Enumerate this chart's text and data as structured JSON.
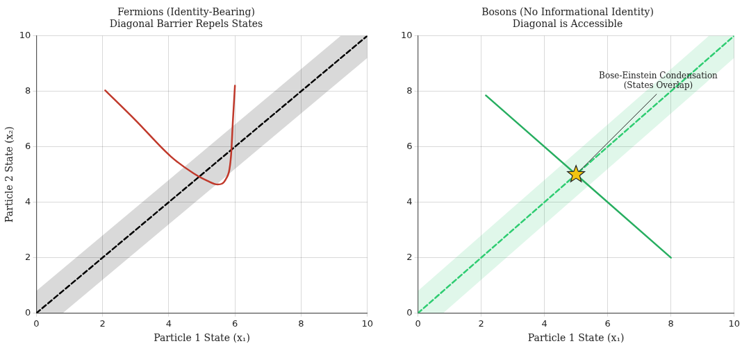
{
  "chart_data": [
    {
      "type": "line",
      "title": "Fermions (Identity-Bearing)",
      "subtitle": "Diagonal Barrier Repels States",
      "xlabel": "Particle 1 State (x₁)",
      "ylabel": "Particle 2 State (x₂)",
      "xlim": [
        0,
        10
      ],
      "ylim": [
        0,
        10
      ],
      "xticks": [
        0,
        2,
        4,
        6,
        8,
        10
      ],
      "yticks": [
        0,
        2,
        4,
        6,
        8,
        10
      ],
      "grid": true,
      "legend": false,
      "marker": "none",
      "series": [
        {
          "type": "line",
          "color": "#000000",
          "line_style": "dashed",
          "x": [
            0,
            0.8,
            9.2,
            10
          ],
          "values": [
            0,
            0.8,
            9.2,
            10
          ],
          "lower": [
            0,
            0,
            8.4,
            9.2
          ],
          "upper": [
            0.8,
            1.6,
            10,
            10
          ]
        },
        {
          "type": "line",
          "color": "#c0392b",
          "line_style": "solid",
          "x": [
            2.08,
            3.0,
            4.06,
            4.75,
            5.17,
            5.48,
            5.73,
            5.88,
            5.94,
            6.0
          ],
          "values": [
            8.03,
            6.95,
            5.65,
            5.04,
            4.77,
            4.64,
            4.84,
            5.65,
            6.98,
            8.2
          ]
        }
      ]
    },
    {
      "type": "line",
      "title": "Bosons (No Informational Identity)",
      "subtitle": "Diagonal is Accessible",
      "xlabel": "Particle 1 State (x₁)",
      "xlim": [
        0,
        10
      ],
      "ylim": [
        0,
        10
      ],
      "xticks": [
        0,
        2,
        4,
        6,
        8,
        10
      ],
      "yticks": [
        0,
        2,
        4,
        6,
        8,
        10
      ],
      "grid": true,
      "legend": false,
      "annotations": [
        {
          "text": "Bose-Einstein Condensation\n(States Overlap)",
          "x": 5,
          "y": 5
        }
      ],
      "series": [
        {
          "type": "line",
          "color": "#2ecc71",
          "line_style": "dashed",
          "marker": "none",
          "x": [
            0,
            0.8,
            9.2,
            10
          ],
          "values": [
            0,
            0.8,
            9.2,
            10
          ],
          "lower": [
            0,
            0,
            8.4,
            9.2
          ],
          "upper": [
            0.8,
            1.6,
            10,
            10
          ]
        },
        {
          "type": "line",
          "color": "#27ae60",
          "line_style": "solid",
          "marker": "none",
          "x": [
            2.15,
            8
          ],
          "values": [
            7.85,
            2
          ]
        },
        {
          "type": "scatter",
          "color": "#f1c40f",
          "marker": "star",
          "x": [
            5
          ],
          "values": [
            5
          ]
        }
      ]
    }
  ]
}
